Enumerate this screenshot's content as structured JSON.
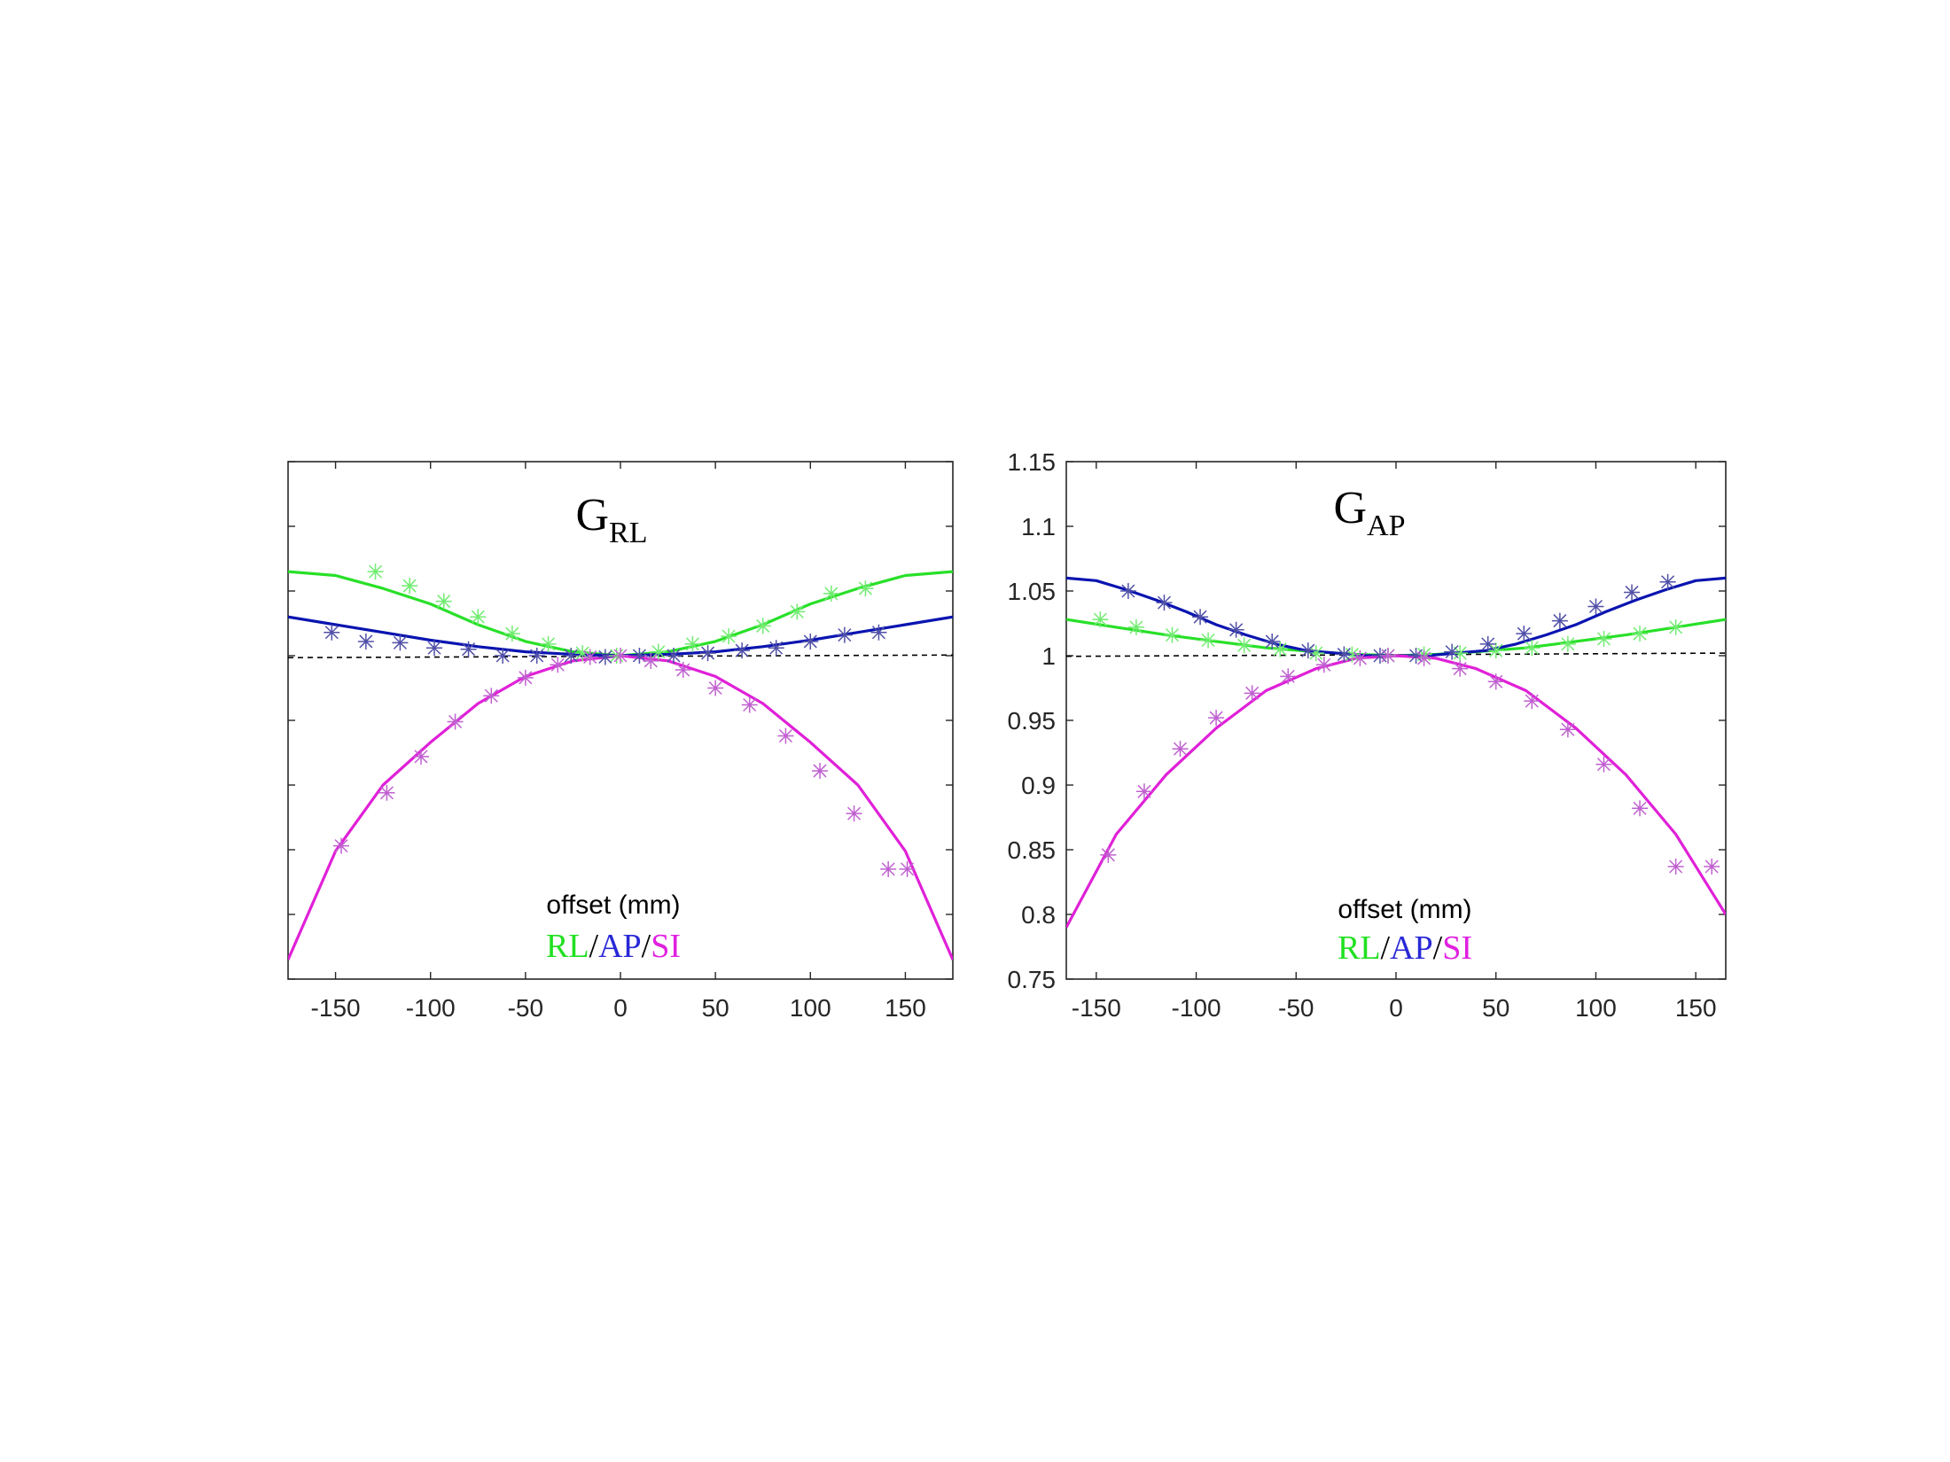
{
  "chart_data": [
    {
      "type": "line",
      "title_main": "G",
      "title_sub": "RL",
      "xlabel": "offset (mm)",
      "ylabel": "",
      "xlim": [
        -175,
        175
      ],
      "ylim": [
        0.75,
        1.15
      ],
      "xticks": [
        -150,
        -100,
        -50,
        0,
        50,
        100,
        150
      ],
      "xtick_labels": [
        "-150",
        "-100",
        "-50",
        "0",
        "50",
        "100",
        "150"
      ],
      "yticks": [
        0.75,
        0.8,
        0.85,
        0.9,
        0.95,
        1.0,
        1.05,
        1.1,
        1.15
      ],
      "ytick_labels": [],
      "reference_line": {
        "y": [
          0.9985,
          1.0005
        ],
        "style": "dashed",
        "color": "#000000"
      },
      "legend": [
        {
          "name": "RL",
          "color": "#22e022"
        },
        {
          "sep": "/"
        },
        {
          "name": "AP",
          "color": "#2828d8"
        },
        {
          "sep": "/"
        },
        {
          "name": "SI",
          "color": "#e020e0"
        }
      ],
      "series": [
        {
          "name": "RL fit",
          "color": "#28e028",
          "kind": "line",
          "x": [
            -175,
            -150,
            -125,
            -100,
            -75,
            -50,
            -25,
            0,
            25,
            50,
            75,
            100,
            125,
            150,
            175
          ],
          "y": [
            1.065,
            1.062,
            1.052,
            1.04,
            1.024,
            1.011,
            1.003,
            1.0,
            1.003,
            1.011,
            1.024,
            1.04,
            1.052,
            1.062,
            1.065
          ]
        },
        {
          "name": "AP fit",
          "color": "#0a14b0",
          "kind": "line",
          "x": [
            -175,
            -150,
            -125,
            -100,
            -75,
            -50,
            -25,
            0,
            25,
            50,
            75,
            100,
            125,
            150,
            175
          ],
          "y": [
            1.03,
            1.024,
            1.018,
            1.012,
            1.007,
            1.003,
            1.001,
            1.0,
            1.001,
            1.003,
            1.007,
            1.012,
            1.018,
            1.024,
            1.03
          ]
        },
        {
          "name": "SI fit",
          "color": "#e020d8",
          "kind": "line",
          "x": [
            -175,
            -150,
            -125,
            -100,
            -75,
            -50,
            -25,
            0,
            25,
            50,
            75,
            100,
            125,
            150,
            175
          ],
          "y": [
            0.765,
            0.849,
            0.9,
            0.933,
            0.963,
            0.984,
            0.996,
            1.0,
            0.996,
            0.984,
            0.963,
            0.933,
            0.9,
            0.849,
            0.765
          ]
        },
        {
          "name": "RL measured",
          "color": "#70ec70",
          "kind": "markers",
          "x": [
            -129,
            -111,
            -93,
            -75,
            -57,
            -38,
            -20,
            -2,
            20,
            38,
            57,
            75,
            93,
            111,
            129
          ],
          "y": [
            1.065,
            1.054,
            1.042,
            1.03,
            1.017,
            1.009,
            1.002,
            1.0,
            1.003,
            1.009,
            1.015,
            1.023,
            1.034,
            1.048,
            1.052
          ]
        },
        {
          "name": "AP measured",
          "color": "#5050a8",
          "kind": "markers",
          "x": [
            -152,
            -134,
            -116,
            -98,
            -80,
            -62,
            -44,
            -26,
            -8,
            10,
            28,
            46,
            64,
            82,
            100,
            118,
            136
          ],
          "y": [
            1.018,
            1.011,
            1.01,
            1.006,
            1.005,
            1.0,
            1.0,
            1.0,
            0.999,
            1.0,
            1.0,
            1.002,
            1.004,
            1.006,
            1.011,
            1.016,
            1.018
          ]
        },
        {
          "name": "SI measured",
          "color": "#c060d0",
          "kind": "markers",
          "x": [
            -147,
            -123,
            -105,
            -87,
            -68,
            -50,
            -33,
            -16,
            0,
            16,
            33,
            50,
            68,
            87,
            105,
            123,
            141,
            151
          ],
          "y": [
            0.853,
            0.894,
            0.922,
            0.949,
            0.969,
            0.983,
            0.993,
            0.999,
            1.0,
            0.996,
            0.989,
            0.975,
            0.962,
            0.938,
            0.911,
            0.878,
            0.835,
            0.835
          ]
        }
      ]
    },
    {
      "type": "line",
      "title_main": "G",
      "title_sub": "AP",
      "xlabel": "offset (mm)",
      "ylabel": "",
      "xlim": [
        -165,
        165
      ],
      "ylim": [
        0.75,
        1.15
      ],
      "xticks": [
        -150,
        -100,
        -50,
        0,
        50,
        100,
        150
      ],
      "xtick_labels": [
        "-150",
        "-100",
        "-50",
        "0",
        "50",
        "100",
        "150"
      ],
      "yticks": [
        0.75,
        0.8,
        0.85,
        0.9,
        0.95,
        1.0,
        1.05,
        1.1,
        1.15
      ],
      "ytick_labels": [
        "0.75",
        "0.8",
        "0.85",
        "0.9",
        "0.95",
        "1",
        "1.05",
        "1.1",
        "1.15"
      ],
      "reference_line": {
        "y": [
          0.9995,
          1.002
        ],
        "style": "dashed",
        "color": "#000000"
      },
      "legend": [
        {
          "name": "RL",
          "color": "#22e022"
        },
        {
          "sep": "/"
        },
        {
          "name": "AP",
          "color": "#2828d8"
        },
        {
          "sep": "/"
        },
        {
          "name": "SI",
          "color": "#e020e0"
        }
      ],
      "series": [
        {
          "name": "RL fit",
          "color": "#28e028",
          "kind": "line",
          "x": [
            -165,
            -140,
            -115,
            -90,
            -65,
            -40,
            -20,
            0,
            20,
            40,
            65,
            90,
            115,
            140,
            165
          ],
          "y": [
            1.028,
            1.022,
            1.016,
            1.011,
            1.006,
            1.003,
            1.001,
            1.0,
            1.001,
            1.003,
            1.006,
            1.011,
            1.016,
            1.022,
            1.028
          ]
        },
        {
          "name": "AP fit",
          "color": "#0a14b0",
          "kind": "line",
          "x": [
            -165,
            -150,
            -135,
            -120,
            -105,
            -90,
            -75,
            -60,
            -45,
            -30,
            -15,
            0,
            15,
            30,
            45,
            60,
            75,
            90,
            105,
            120,
            135,
            150,
            165
          ],
          "y": [
            1.06,
            1.058,
            1.051,
            1.043,
            1.034,
            1.024,
            1.016,
            1.009,
            1.004,
            1.002,
            1.0,
            1.0,
            1.0,
            1.002,
            1.004,
            1.009,
            1.016,
            1.024,
            1.034,
            1.043,
            1.051,
            1.058,
            1.06
          ]
        },
        {
          "name": "SI fit",
          "color": "#e020d8",
          "kind": "line",
          "x": [
            -165,
            -140,
            -115,
            -90,
            -65,
            -40,
            -20,
            0,
            20,
            40,
            65,
            90,
            115,
            140,
            165
          ],
          "y": [
            0.79,
            0.862,
            0.908,
            0.944,
            0.973,
            0.99,
            0.998,
            1.0,
            0.998,
            0.99,
            0.973,
            0.944,
            0.908,
            0.862,
            0.8
          ]
        },
        {
          "name": "RL measured",
          "color": "#70ec70",
          "kind": "markers",
          "x": [
            -148,
            -130,
            -112,
            -94,
            -76,
            -58,
            -40,
            -22,
            -4,
            14,
            32,
            50,
            68,
            86,
            104,
            122,
            140
          ],
          "y": [
            1.028,
            1.022,
            1.016,
            1.012,
            1.008,
            1.005,
            1.002,
            1.001,
            1.0,
            1.001,
            1.002,
            1.004,
            1.006,
            1.009,
            1.013,
            1.017,
            1.022
          ]
        },
        {
          "name": "AP measured",
          "color": "#5050a8",
          "kind": "markers",
          "x": [
            -134,
            -116,
            -98,
            -80,
            -62,
            -44,
            -26,
            -8,
            10,
            28,
            46,
            64,
            82,
            100,
            118,
            136
          ],
          "y": [
            1.05,
            1.041,
            1.03,
            1.02,
            1.011,
            1.004,
            1.001,
            1.0,
            1.0,
            1.003,
            1.009,
            1.017,
            1.027,
            1.038,
            1.049,
            1.057
          ]
        },
        {
          "name": "SI measured",
          "color": "#c060d0",
          "kind": "markers",
          "x": [
            -144,
            -126,
            -108,
            -90,
            -72,
            -54,
            -36,
            -18,
            -4,
            14,
            32,
            50,
            68,
            86,
            104,
            122,
            140,
            158
          ],
          "y": [
            0.846,
            0.895,
            0.928,
            0.952,
            0.971,
            0.984,
            0.993,
            0.998,
            1.0,
            0.998,
            0.99,
            0.98,
            0.965,
            0.943,
            0.916,
            0.882,
            0.837,
            0.837
          ]
        }
      ]
    }
  ]
}
